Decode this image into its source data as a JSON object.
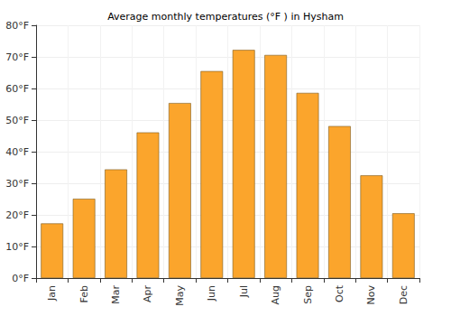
{
  "chart_data": {
    "type": "bar",
    "title": "Average monthly temperatures (°F ) in Hysham",
    "categories": [
      "Jan",
      "Feb",
      "Mar",
      "Apr",
      "May",
      "Jun",
      "Jul",
      "Aug",
      "Sep",
      "Oct",
      "Nov",
      "Dec"
    ],
    "values": [
      17.3,
      25.1,
      34.4,
      46.1,
      55.4,
      65.5,
      72.2,
      70.6,
      58.6,
      48.1,
      32.5,
      20.5
    ],
    "color": "#fba52c",
    "ylim": [
      0,
      80
    ],
    "yticks": [
      {
        "value": 0,
        "label": "0°F"
      },
      {
        "value": 10,
        "label": "10°F"
      },
      {
        "value": 20,
        "label": "20°F"
      },
      {
        "value": 30,
        "label": "30°F"
      },
      {
        "value": 40,
        "label": "40°F"
      },
      {
        "value": 50,
        "label": "50°F"
      },
      {
        "value": 60,
        "label": "60°F"
      },
      {
        "value": 70,
        "label": "70°F"
      },
      {
        "value": 80,
        "label": "80°F"
      }
    ],
    "grid": true
  }
}
